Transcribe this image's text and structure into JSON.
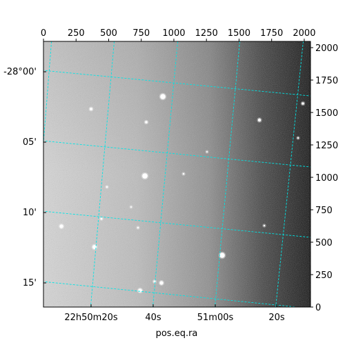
{
  "chart_data": {
    "type": "image",
    "xlabel": "pos.eq.ra",
    "pixel_axes": {
      "top_ticks": [
        "0",
        "250",
        "500",
        "750",
        "1000",
        "1250",
        "1500",
        "1750",
        "2000"
      ],
      "right_ticks": [
        "0",
        "250",
        "500",
        "750",
        "1000",
        "1250",
        "1500",
        "1750",
        "2000"
      ],
      "range": [
        0,
        2048
      ]
    },
    "world_axes": {
      "dec_ticks": [
        "-28°00'",
        "05'",
        "10'",
        "15'"
      ],
      "dec_values_arcmin": [
        0,
        5,
        10,
        15
      ],
      "ra_ticks": [
        "22h50m20s",
        "40s",
        "51m00s",
        "20s"
      ]
    },
    "grid": true,
    "grid_color": "#00e5e5",
    "colormap": "gray",
    "background_gradient": "bright-left-to-dark-right"
  }
}
